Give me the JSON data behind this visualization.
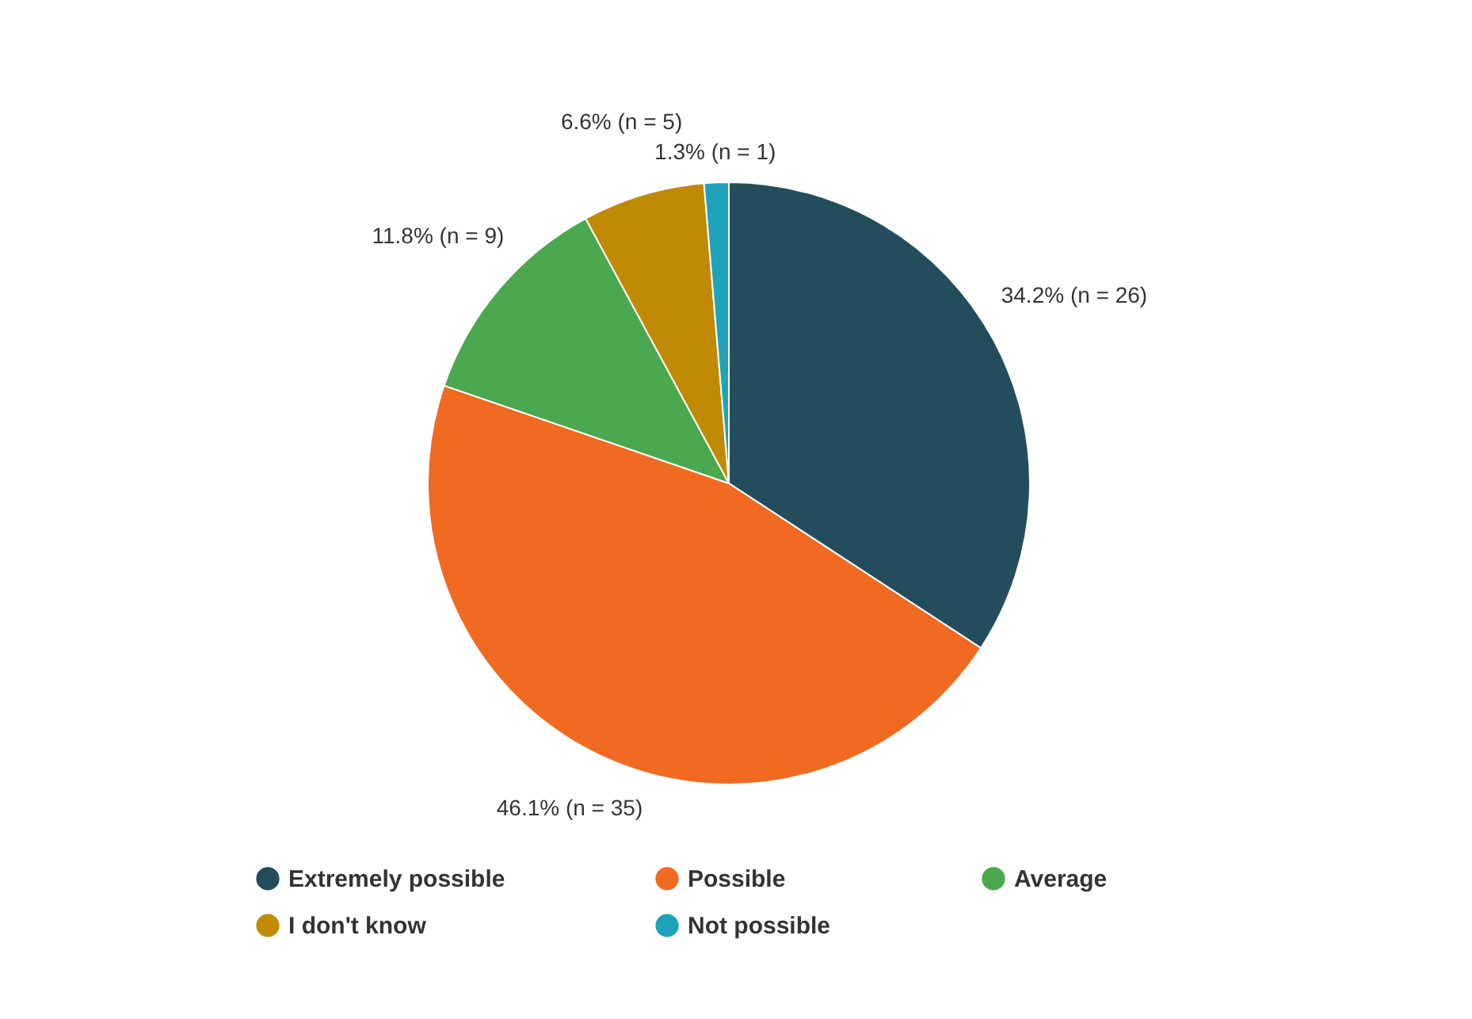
{
  "chart_data": {
    "type": "pie",
    "categories": [
      "Extremely possible",
      "Possible",
      "Average",
      "I don't know",
      "Not possible"
    ],
    "values": [
      26,
      35,
      9,
      5,
      1
    ],
    "colors": [
      "#234d5c",
      "#f06a22",
      "#4aa84e",
      "#c08a04",
      "#1fa3ba"
    ],
    "value_labels": [
      "34.2% (n = 26)",
      "46.1% (n = 35)",
      "11.8% (n = 9)",
      "6.6% (n = 5)",
      "1.3% (n = 1)"
    ],
    "legend": "bottom"
  }
}
